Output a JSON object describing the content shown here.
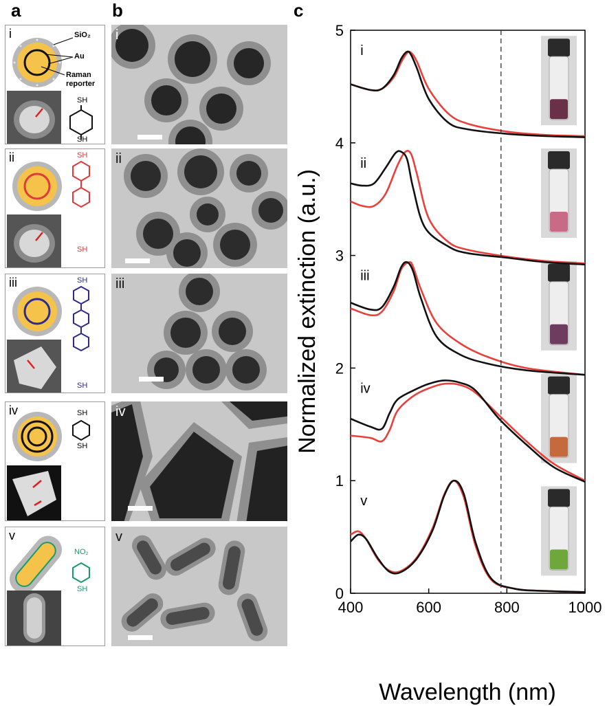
{
  "panels": {
    "a_label": "a",
    "b_label": "b",
    "c_label": "c"
  },
  "schematic": {
    "sio2_label": "SiO₂",
    "au_label": "Au",
    "raman_label_line1": "Raman",
    "raman_label_line2": "reporter",
    "sh_label": "SH",
    "no2_label": "NO₂"
  },
  "rows": [
    {
      "roman": "i",
      "reporter_color": "#111111"
    },
    {
      "roman": "ii",
      "reporter_color": "#e03a3a"
    },
    {
      "roman": "iii",
      "reporter_color": "#2c2a8c"
    },
    {
      "roman": "iv",
      "reporter_color": "#111111"
    },
    {
      "roman": "v",
      "reporter_color": "#1a9a6c"
    }
  ],
  "colors": {
    "red_series": "#e8413c",
    "black_series": "#111111",
    "gold": "#f6c34a",
    "silica": "#b8b8b8"
  },
  "chart_data": {
    "type": "line",
    "xlabel": "Wavelength (nm)",
    "ylabel": "Normalized extinction (a.u.)",
    "xlim": [
      400,
      1000
    ],
    "ylim": [
      0,
      5
    ],
    "xticks": [
      400,
      600,
      800,
      1000
    ],
    "yticks": [
      0,
      1,
      2,
      3,
      4,
      5
    ],
    "dashed_line_x": 785,
    "curve_labels": [
      {
        "text": "i",
        "x": 425,
        "y": 4.78
      },
      {
        "text": "ii",
        "x": 425,
        "y": 3.78
      },
      {
        "text": "iii",
        "x": 425,
        "y": 2.78
      },
      {
        "text": "iv",
        "x": 425,
        "y": 1.78
      },
      {
        "text": "v",
        "x": 425,
        "y": 0.78
      }
    ],
    "series": [
      {
        "group": "i",
        "color": "red",
        "x": [
          400,
          450,
          480,
          510,
          530,
          545,
          555,
          570,
          600,
          650,
          700,
          800,
          900,
          1000
        ],
        "y": [
          4.52,
          4.47,
          4.48,
          4.58,
          4.72,
          4.8,
          4.8,
          4.72,
          4.48,
          4.26,
          4.17,
          4.1,
          4.07,
          4.06
        ]
      },
      {
        "group": "i",
        "color": "black",
        "x": [
          400,
          450,
          480,
          510,
          530,
          545,
          555,
          570,
          600,
          650,
          700,
          800,
          900,
          1000
        ],
        "y": [
          4.52,
          4.47,
          4.48,
          4.6,
          4.75,
          4.81,
          4.78,
          4.66,
          4.39,
          4.18,
          4.12,
          4.08,
          4.06,
          4.05
        ]
      },
      {
        "group": "ii",
        "color": "red",
        "x": [
          400,
          430,
          460,
          490,
          520,
          540,
          555,
          570,
          600,
          650,
          700,
          800,
          900,
          1000
        ],
        "y": [
          3.48,
          3.44,
          3.44,
          3.55,
          3.8,
          3.92,
          3.9,
          3.72,
          3.33,
          3.12,
          3.05,
          2.99,
          2.95,
          2.93
        ]
      },
      {
        "group": "ii",
        "color": "black",
        "x": [
          400,
          430,
          460,
          490,
          515,
          530,
          545,
          560,
          590,
          650,
          700,
          800,
          900,
          1000
        ],
        "y": [
          3.64,
          3.62,
          3.64,
          3.78,
          3.91,
          3.92,
          3.85,
          3.6,
          3.25,
          3.08,
          3.02,
          2.98,
          2.94,
          2.92
        ]
      },
      {
        "group": "iii",
        "color": "red",
        "x": [
          400,
          450,
          480,
          510,
          530,
          550,
          560,
          580,
          620,
          680,
          750,
          850,
          1000
        ],
        "y": [
          2.53,
          2.47,
          2.5,
          2.68,
          2.88,
          2.94,
          2.9,
          2.7,
          2.4,
          2.22,
          2.1,
          2.0,
          1.94
        ]
      },
      {
        "group": "iii",
        "color": "black",
        "x": [
          400,
          450,
          480,
          510,
          530,
          545,
          560,
          580,
          620,
          680,
          750,
          850,
          1000
        ],
        "y": [
          2.58,
          2.52,
          2.54,
          2.72,
          2.9,
          2.94,
          2.86,
          2.62,
          2.28,
          2.12,
          2.04,
          1.98,
          1.94
        ]
      },
      {
        "group": "iv",
        "color": "red",
        "x": [
          400,
          450,
          480,
          500,
          520,
          560,
          600,
          640,
          680,
          720,
          780,
          850,
          920,
          1000
        ],
        "y": [
          1.4,
          1.38,
          1.35,
          1.45,
          1.62,
          1.75,
          1.82,
          1.86,
          1.85,
          1.78,
          1.58,
          1.35,
          1.15,
          1.0
        ]
      },
      {
        "group": "iv",
        "color": "black",
        "x": [
          400,
          450,
          480,
          500,
          520,
          560,
          600,
          640,
          680,
          720,
          780,
          850,
          920,
          1000
        ],
        "y": [
          1.55,
          1.48,
          1.46,
          1.6,
          1.72,
          1.8,
          1.86,
          1.89,
          1.87,
          1.8,
          1.55,
          1.32,
          1.12,
          0.99
        ]
      },
      {
        "group": "v",
        "color": "red",
        "x": [
          400,
          420,
          440,
          470,
          500,
          530,
          570,
          610,
          640,
          665,
          690,
          720,
          760,
          820,
          900,
          1000
        ],
        "y": [
          0.52,
          0.55,
          0.48,
          0.3,
          0.2,
          0.2,
          0.32,
          0.58,
          0.88,
          1.0,
          0.85,
          0.42,
          0.12,
          0.04,
          0.02,
          0.01
        ]
      },
      {
        "group": "v",
        "color": "black",
        "x": [
          400,
          420,
          440,
          470,
          500,
          530,
          570,
          610,
          640,
          665,
          690,
          720,
          760,
          820,
          900,
          1000
        ],
        "y": [
          0.46,
          0.52,
          0.48,
          0.31,
          0.19,
          0.19,
          0.31,
          0.56,
          0.87,
          1.0,
          0.88,
          0.45,
          0.13,
          0.04,
          0.02,
          0.01
        ]
      }
    ],
    "vial_liquid_colors": [
      "#6a3048",
      "#c96a86",
      "#6e3c5e",
      "#c46a3c",
      "#6fa83a"
    ]
  }
}
